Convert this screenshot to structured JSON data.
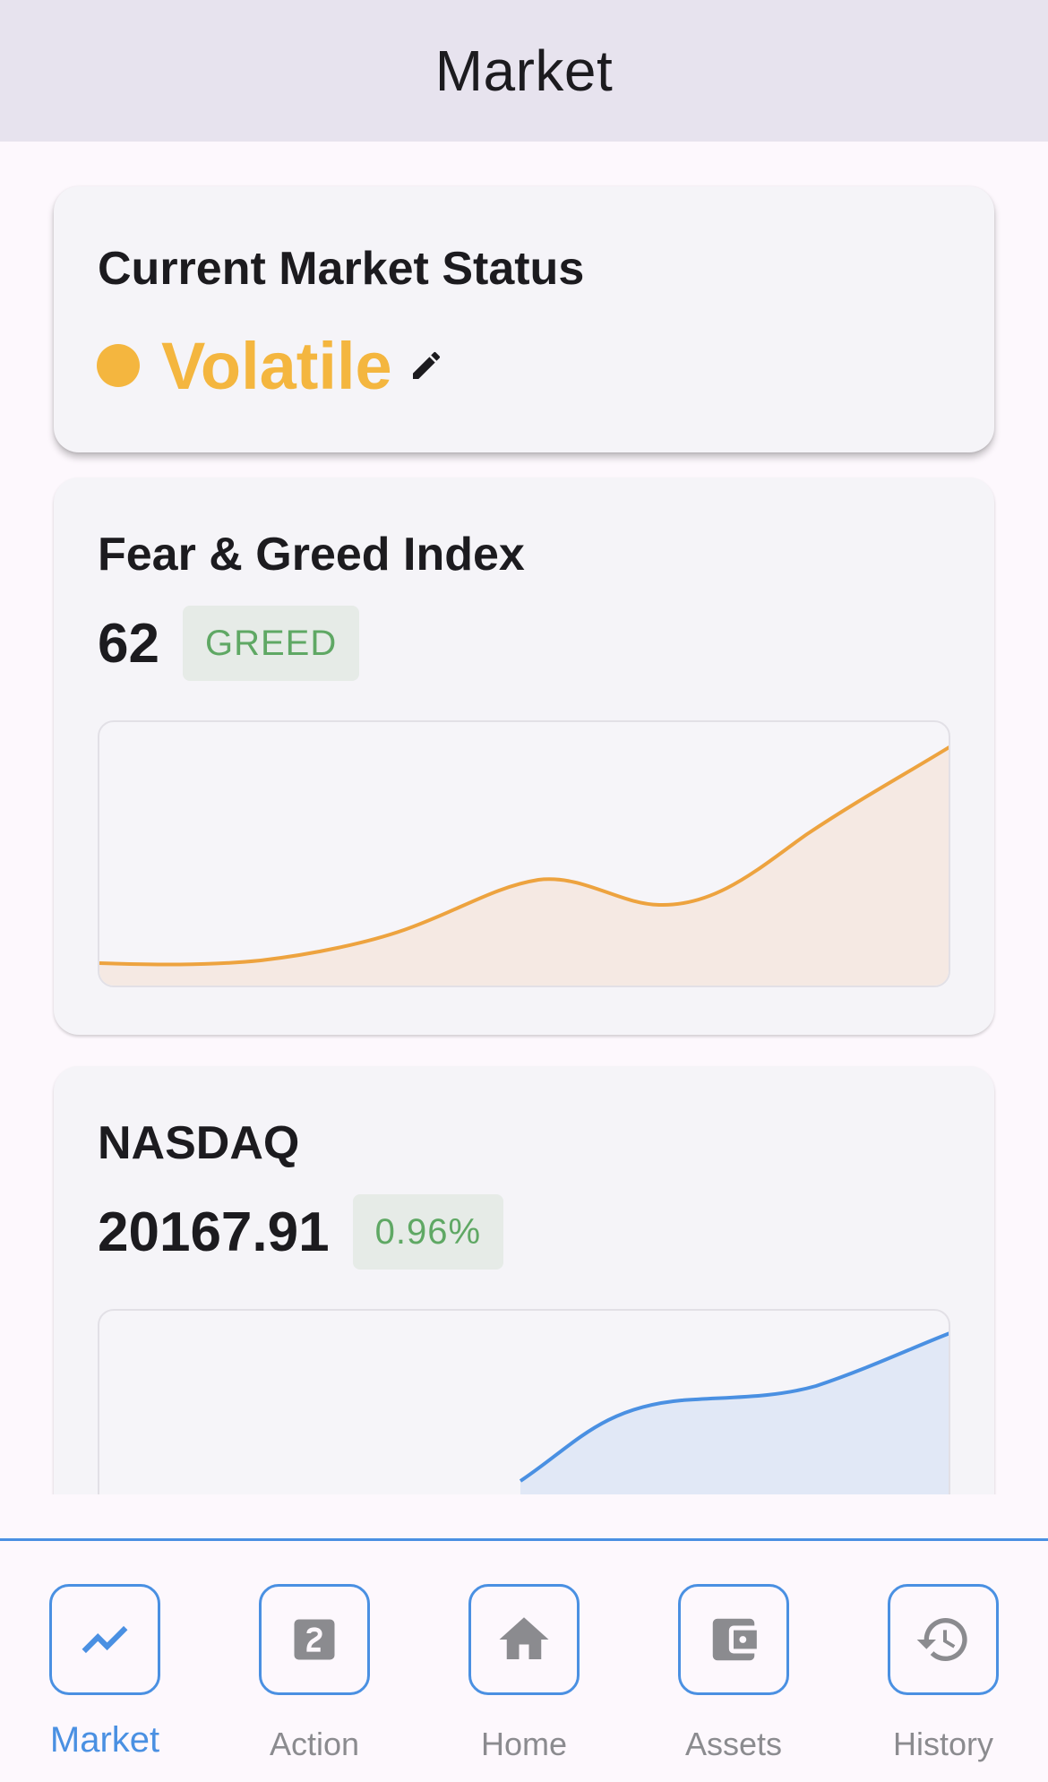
{
  "app_bar": {
    "title": "Market"
  },
  "status_card": {
    "title": "Current Market Status",
    "status": "Volatile",
    "status_color": "#f4b63f",
    "dot_icon": "circle-icon",
    "edit_icon": "pencil-icon"
  },
  "fng_card": {
    "title": "Fear & Greed Index",
    "value": "62",
    "badge": "GREED",
    "badge_color": "#5fa864",
    "line_color": "#eda33f",
    "fill_color": "#f5e9e3"
  },
  "nasdaq_card": {
    "title": "NASDAQ",
    "value": "20167.91",
    "badge": "0.96%",
    "badge_color": "#5fa864",
    "line_color": "#4a90e2",
    "fill_color": "#e1e8f6"
  },
  "nav": {
    "accent": "#4a90e2",
    "items": [
      {
        "label": "Market",
        "icon": "trending-up-icon",
        "active": true
      },
      {
        "label": "Action",
        "icon": "counter-2-icon",
        "active": false
      },
      {
        "label": "Home",
        "icon": "home-icon",
        "active": false
      },
      {
        "label": "Assets",
        "icon": "wallet-icon",
        "active": false
      },
      {
        "label": "History",
        "icon": "history-icon",
        "active": false
      }
    ]
  }
}
